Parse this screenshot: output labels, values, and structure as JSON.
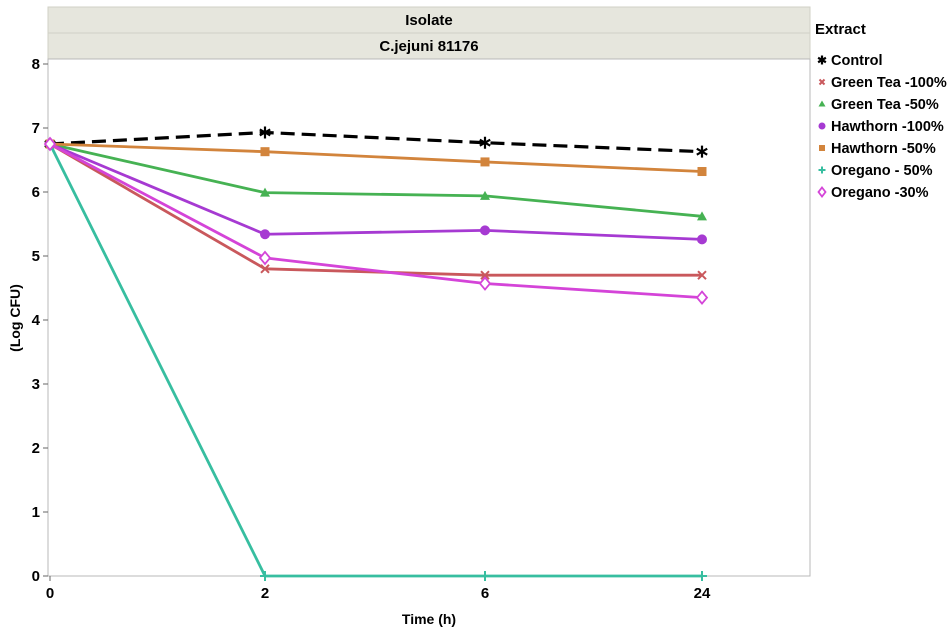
{
  "chart_data": {
    "type": "line",
    "header_title": "Isolate",
    "header_subtitle": "C.jejuni  81176",
    "xlabel": "Time (h)",
    "ylabel": "(Log CFU)",
    "x": [
      "0",
      "2",
      "6",
      "24"
    ],
    "ylim": [
      0,
      8
    ],
    "yticks": [
      "0",
      "1",
      "2",
      "3",
      "4",
      "5",
      "6",
      "7",
      "8"
    ],
    "grid": false,
    "legend_title": "Extract",
    "legend_position": "right",
    "series": [
      {
        "name": "Control",
        "color": "#000000",
        "marker": "asterisk",
        "dashed": true,
        "values": [
          6.75,
          6.93,
          6.77,
          6.63
        ]
      },
      {
        "name": "Green Tea -100%",
        "color": "#c9585c",
        "marker": "x",
        "dashed": false,
        "values": [
          6.75,
          4.8,
          4.7,
          4.7
        ]
      },
      {
        "name": "Green Tea -50%",
        "color": "#46b253",
        "marker": "triangle",
        "dashed": false,
        "values": [
          6.75,
          5.99,
          5.94,
          5.62
        ]
      },
      {
        "name": "Hawthorn -100%",
        "color": "#a63ad2",
        "marker": "circle",
        "dashed": false,
        "values": [
          6.75,
          5.34,
          5.4,
          5.26
        ]
      },
      {
        "name": "Hawthorn -50%",
        "color": "#d2843c",
        "marker": "square",
        "dashed": false,
        "values": [
          6.75,
          6.63,
          6.47,
          6.32
        ]
      },
      {
        "name": "Oregano - 50%",
        "color": "#37bea0",
        "marker": "plus",
        "dashed": false,
        "values": [
          6.75,
          0.0,
          0.0,
          0.0
        ]
      },
      {
        "name": "Oregano -30%",
        "color": "#d444d8",
        "marker": "diamond",
        "dashed": false,
        "values": [
          6.75,
          4.97,
          4.57,
          4.35
        ]
      }
    ]
  }
}
